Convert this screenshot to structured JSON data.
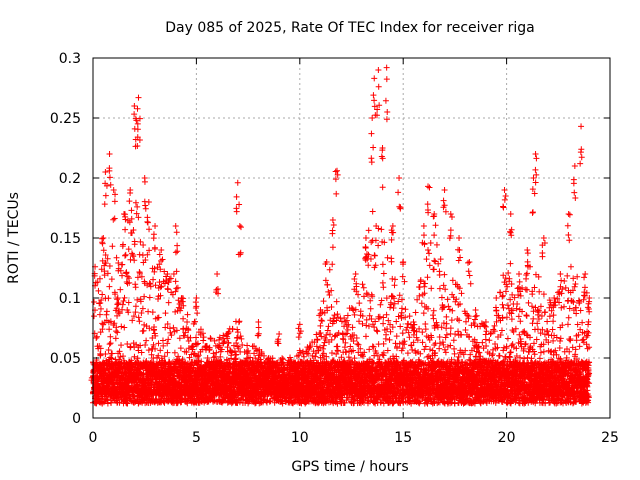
{
  "chart_data": {
    "type": "scatter",
    "title": "Day 085 of 2025, Rate Of TEC Index for receiver riga",
    "xlabel": "GPS time / hours",
    "ylabel": "ROTI / TECUs",
    "xlim": [
      0,
      25
    ],
    "ylim": [
      0,
      0.3
    ],
    "x_ticks": [
      "0",
      "5",
      "10",
      "15",
      "20",
      "25"
    ],
    "y_ticks": [
      "0",
      "0.05",
      "0.1",
      "0.15",
      "0.2",
      "0.25",
      "0.3"
    ],
    "grid": true,
    "marker": "plus",
    "color": "#ff0000",
    "data_points_sampled": [
      {
        "x": 0.0,
        "y": 0.035
      },
      {
        "x": 0.1,
        "y": 0.126
      },
      {
        "x": 0.3,
        "y": 0.06
      },
      {
        "x": 0.5,
        "y": 0.15
      },
      {
        "x": 0.6,
        "y": 0.205
      },
      {
        "x": 0.8,
        "y": 0.22
      },
      {
        "x": 1.0,
        "y": 0.19
      },
      {
        "x": 1.2,
        "y": 0.1
      },
      {
        "x": 1.5,
        "y": 0.17
      },
      {
        "x": 1.8,
        "y": 0.19
      },
      {
        "x": 2.0,
        "y": 0.26
      },
      {
        "x": 2.1,
        "y": 0.248
      },
      {
        "x": 2.2,
        "y": 0.267
      },
      {
        "x": 2.5,
        "y": 0.2
      },
      {
        "x": 2.7,
        "y": 0.18
      },
      {
        "x": 3.0,
        "y": 0.16
      },
      {
        "x": 3.3,
        "y": 0.14
      },
      {
        "x": 3.6,
        "y": 0.12
      },
      {
        "x": 4.0,
        "y": 0.16
      },
      {
        "x": 4.3,
        "y": 0.1
      },
      {
        "x": 4.8,
        "y": 0.06
      },
      {
        "x": 5.0,
        "y": 0.1
      },
      {
        "x": 5.5,
        "y": 0.06
      },
      {
        "x": 6.0,
        "y": 0.12
      },
      {
        "x": 6.5,
        "y": 0.07
      },
      {
        "x": 7.0,
        "y": 0.196
      },
      {
        "x": 7.1,
        "y": 0.16
      },
      {
        "x": 7.5,
        "y": 0.05
      },
      {
        "x": 8.0,
        "y": 0.08
      },
      {
        "x": 8.5,
        "y": 0.05
      },
      {
        "x": 9.0,
        "y": 0.07
      },
      {
        "x": 9.5,
        "y": 0.04
      },
      {
        "x": 10.0,
        "y": 0.078
      },
      {
        "x": 10.5,
        "y": 0.06
      },
      {
        "x": 11.0,
        "y": 0.09
      },
      {
        "x": 11.3,
        "y": 0.13
      },
      {
        "x": 11.6,
        "y": 0.165
      },
      {
        "x": 11.8,
        "y": 0.206
      },
      {
        "x": 12.2,
        "y": 0.08
      },
      {
        "x": 12.7,
        "y": 0.12
      },
      {
        "x": 13.2,
        "y": 0.15
      },
      {
        "x": 13.5,
        "y": 0.25
      },
      {
        "x": 13.6,
        "y": 0.283
      },
      {
        "x": 13.8,
        "y": 0.29
      },
      {
        "x": 14.0,
        "y": 0.225
      },
      {
        "x": 14.2,
        "y": 0.292
      },
      {
        "x": 14.5,
        "y": 0.16
      },
      {
        "x": 14.8,
        "y": 0.2
      },
      {
        "x": 15.0,
        "y": 0.13
      },
      {
        "x": 15.5,
        "y": 0.08
      },
      {
        "x": 16.0,
        "y": 0.16
      },
      {
        "x": 16.2,
        "y": 0.193
      },
      {
        "x": 16.5,
        "y": 0.17
      },
      {
        "x": 17.0,
        "y": 0.19
      },
      {
        "x": 17.3,
        "y": 0.17
      },
      {
        "x": 17.7,
        "y": 0.15
      },
      {
        "x": 18.2,
        "y": 0.13
      },
      {
        "x": 18.5,
        "y": 0.09
      },
      {
        "x": 19.0,
        "y": 0.08
      },
      {
        "x": 19.5,
        "y": 0.1
      },
      {
        "x": 19.9,
        "y": 0.19
      },
      {
        "x": 20.2,
        "y": 0.17
      },
      {
        "x": 20.6,
        "y": 0.12
      },
      {
        "x": 21.0,
        "y": 0.14
      },
      {
        "x": 21.3,
        "y": 0.2
      },
      {
        "x": 21.4,
        "y": 0.22
      },
      {
        "x": 21.8,
        "y": 0.15
      },
      {
        "x": 22.3,
        "y": 0.1
      },
      {
        "x": 22.6,
        "y": 0.12
      },
      {
        "x": 23.0,
        "y": 0.17
      },
      {
        "x": 23.3,
        "y": 0.21
      },
      {
        "x": 23.6,
        "y": 0.243
      },
      {
        "x": 23.8,
        "y": 0.12
      },
      {
        "x": 24.0,
        "y": 0.1
      }
    ],
    "envelope": {
      "hours": [
        0,
        0.5,
        1,
        1.5,
        2,
        2.5,
        3,
        3.5,
        4,
        4.5,
        5,
        5.5,
        6,
        6.5,
        7,
        7.5,
        8,
        8.5,
        9,
        9.5,
        10,
        10.5,
        11,
        11.5,
        12,
        12.5,
        13,
        13.5,
        14,
        14.5,
        15,
        15.5,
        16,
        16.5,
        17,
        17.5,
        18,
        18.5,
        19,
        19.5,
        20,
        20.5,
        21,
        21.5,
        22,
        22.5,
        23,
        23.5,
        24
      ],
      "typical_max": [
        0.11,
        0.14,
        0.15,
        0.15,
        0.19,
        0.14,
        0.14,
        0.12,
        0.13,
        0.09,
        0.08,
        0.07,
        0.07,
        0.07,
        0.09,
        0.06,
        0.06,
        0.05,
        0.05,
        0.05,
        0.06,
        0.06,
        0.08,
        0.14,
        0.08,
        0.1,
        0.12,
        0.18,
        0.16,
        0.13,
        0.1,
        0.08,
        0.14,
        0.15,
        0.13,
        0.12,
        0.1,
        0.08,
        0.08,
        0.09,
        0.14,
        0.11,
        0.13,
        0.12,
        0.1,
        0.11,
        0.13,
        0.12,
        0.1
      ]
    }
  }
}
